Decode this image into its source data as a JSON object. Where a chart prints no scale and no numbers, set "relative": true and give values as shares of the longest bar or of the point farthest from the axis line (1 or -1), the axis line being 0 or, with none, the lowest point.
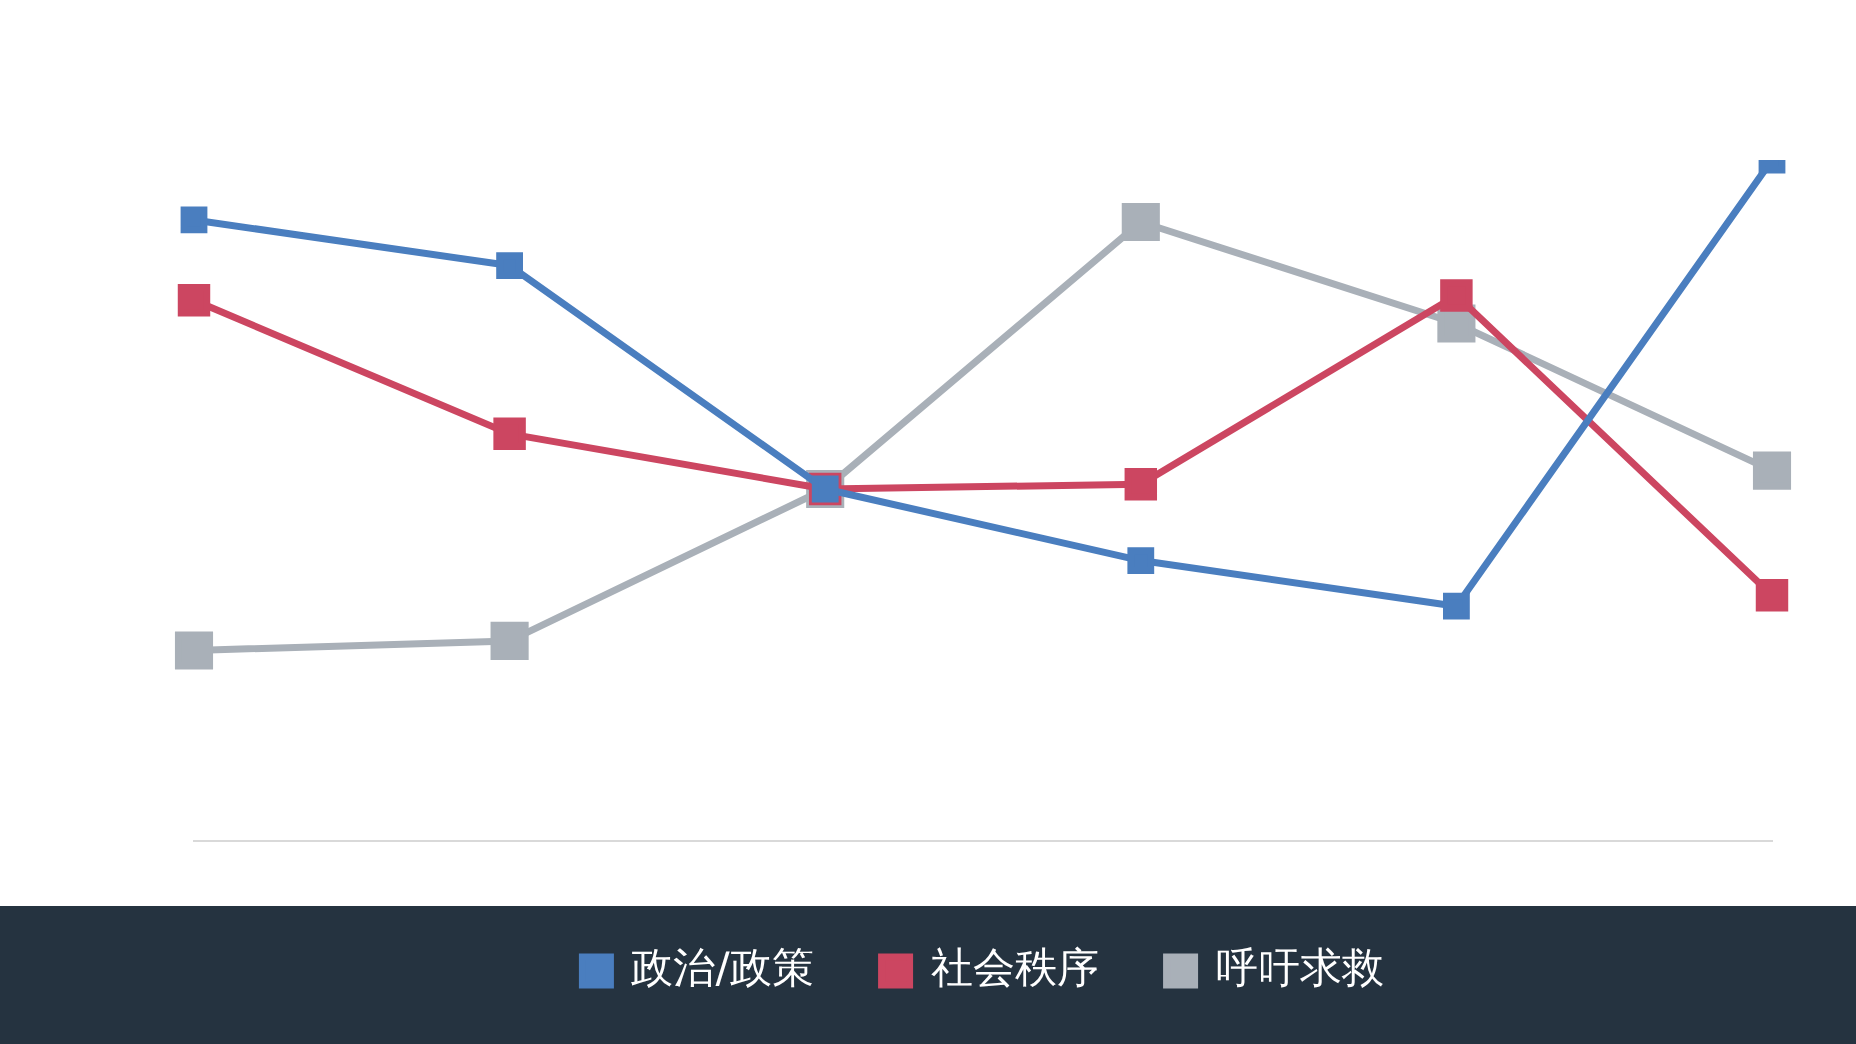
{
  "chart_data": {
    "type": "line",
    "relative": true,
    "categories": [
      null,
      null,
      null,
      null,
      null,
      null
    ],
    "legend": "bottom",
    "marker": "square",
    "line_style": "solid",
    "grid": false,
    "series": [
      {
        "name": "政治/政策",
        "color": "#4a7ebf",
        "values": [
          0.912,
          0.845,
          0.517,
          0.412,
          0.345,
          1
        ]
      },
      {
        "name": "社会秩序",
        "color": "#cc4661",
        "values": [
          0.794,
          0.598,
          0.517,
          0.524,
          0.801,
          0.361
        ]
      },
      {
        "name": "呼吁求救",
        "color": "#a9b0b8",
        "values": [
          0.28,
          0.294,
          0.517,
          0.909,
          0.76,
          0.544
        ]
      }
    ]
  }
}
